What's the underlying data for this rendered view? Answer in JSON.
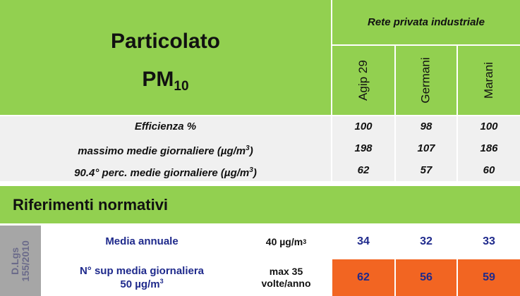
{
  "header": {
    "title_line1": "Particolato",
    "title_pm": "PM",
    "title_pm_sub": "10",
    "rete_label": "Rete privata industriale",
    "stations": [
      "Agip 29",
      "Germani",
      "Marani"
    ]
  },
  "stats": [
    {
      "label": "Efficienza %",
      "values": [
        "100",
        "98",
        "100"
      ]
    },
    {
      "label_prefix": "massimo medie giornaliere (µg/m",
      "label_sup": "3",
      "label_suffix": ")",
      "values": [
        "198",
        "107",
        "186"
      ]
    },
    {
      "label_prefix": "90.4° perc. medie giornaliere (µg/m",
      "label_sup": "3",
      "label_suffix": ")",
      "values": [
        "62",
        "57",
        "60"
      ]
    }
  ],
  "riferimenti": {
    "title": "Riferimenti normativi",
    "law_line1": "D.Lgs",
    "law_line2": "155/2010",
    "rows": [
      {
        "label": "Media annuale",
        "ref_prefix": "40  µg/m",
        "ref_sup": "3",
        "values": [
          "34",
          "32",
          "33"
        ]
      },
      {
        "label_line1": "N° sup media giornaliera",
        "label_line2_prefix": "50 µg/m",
        "label_line2_sup": "3",
        "ref_line1": "max 35",
        "ref_line2": "volte/anno",
        "values": [
          "62",
          "56",
          "59"
        ]
      }
    ]
  },
  "colors": {
    "header_green": "#92d050",
    "stats_gray": "#f0f0f0",
    "law_gray": "#a6a6a6",
    "exceed_orange": "#f26522",
    "label_blue": "#1f2a8c"
  }
}
